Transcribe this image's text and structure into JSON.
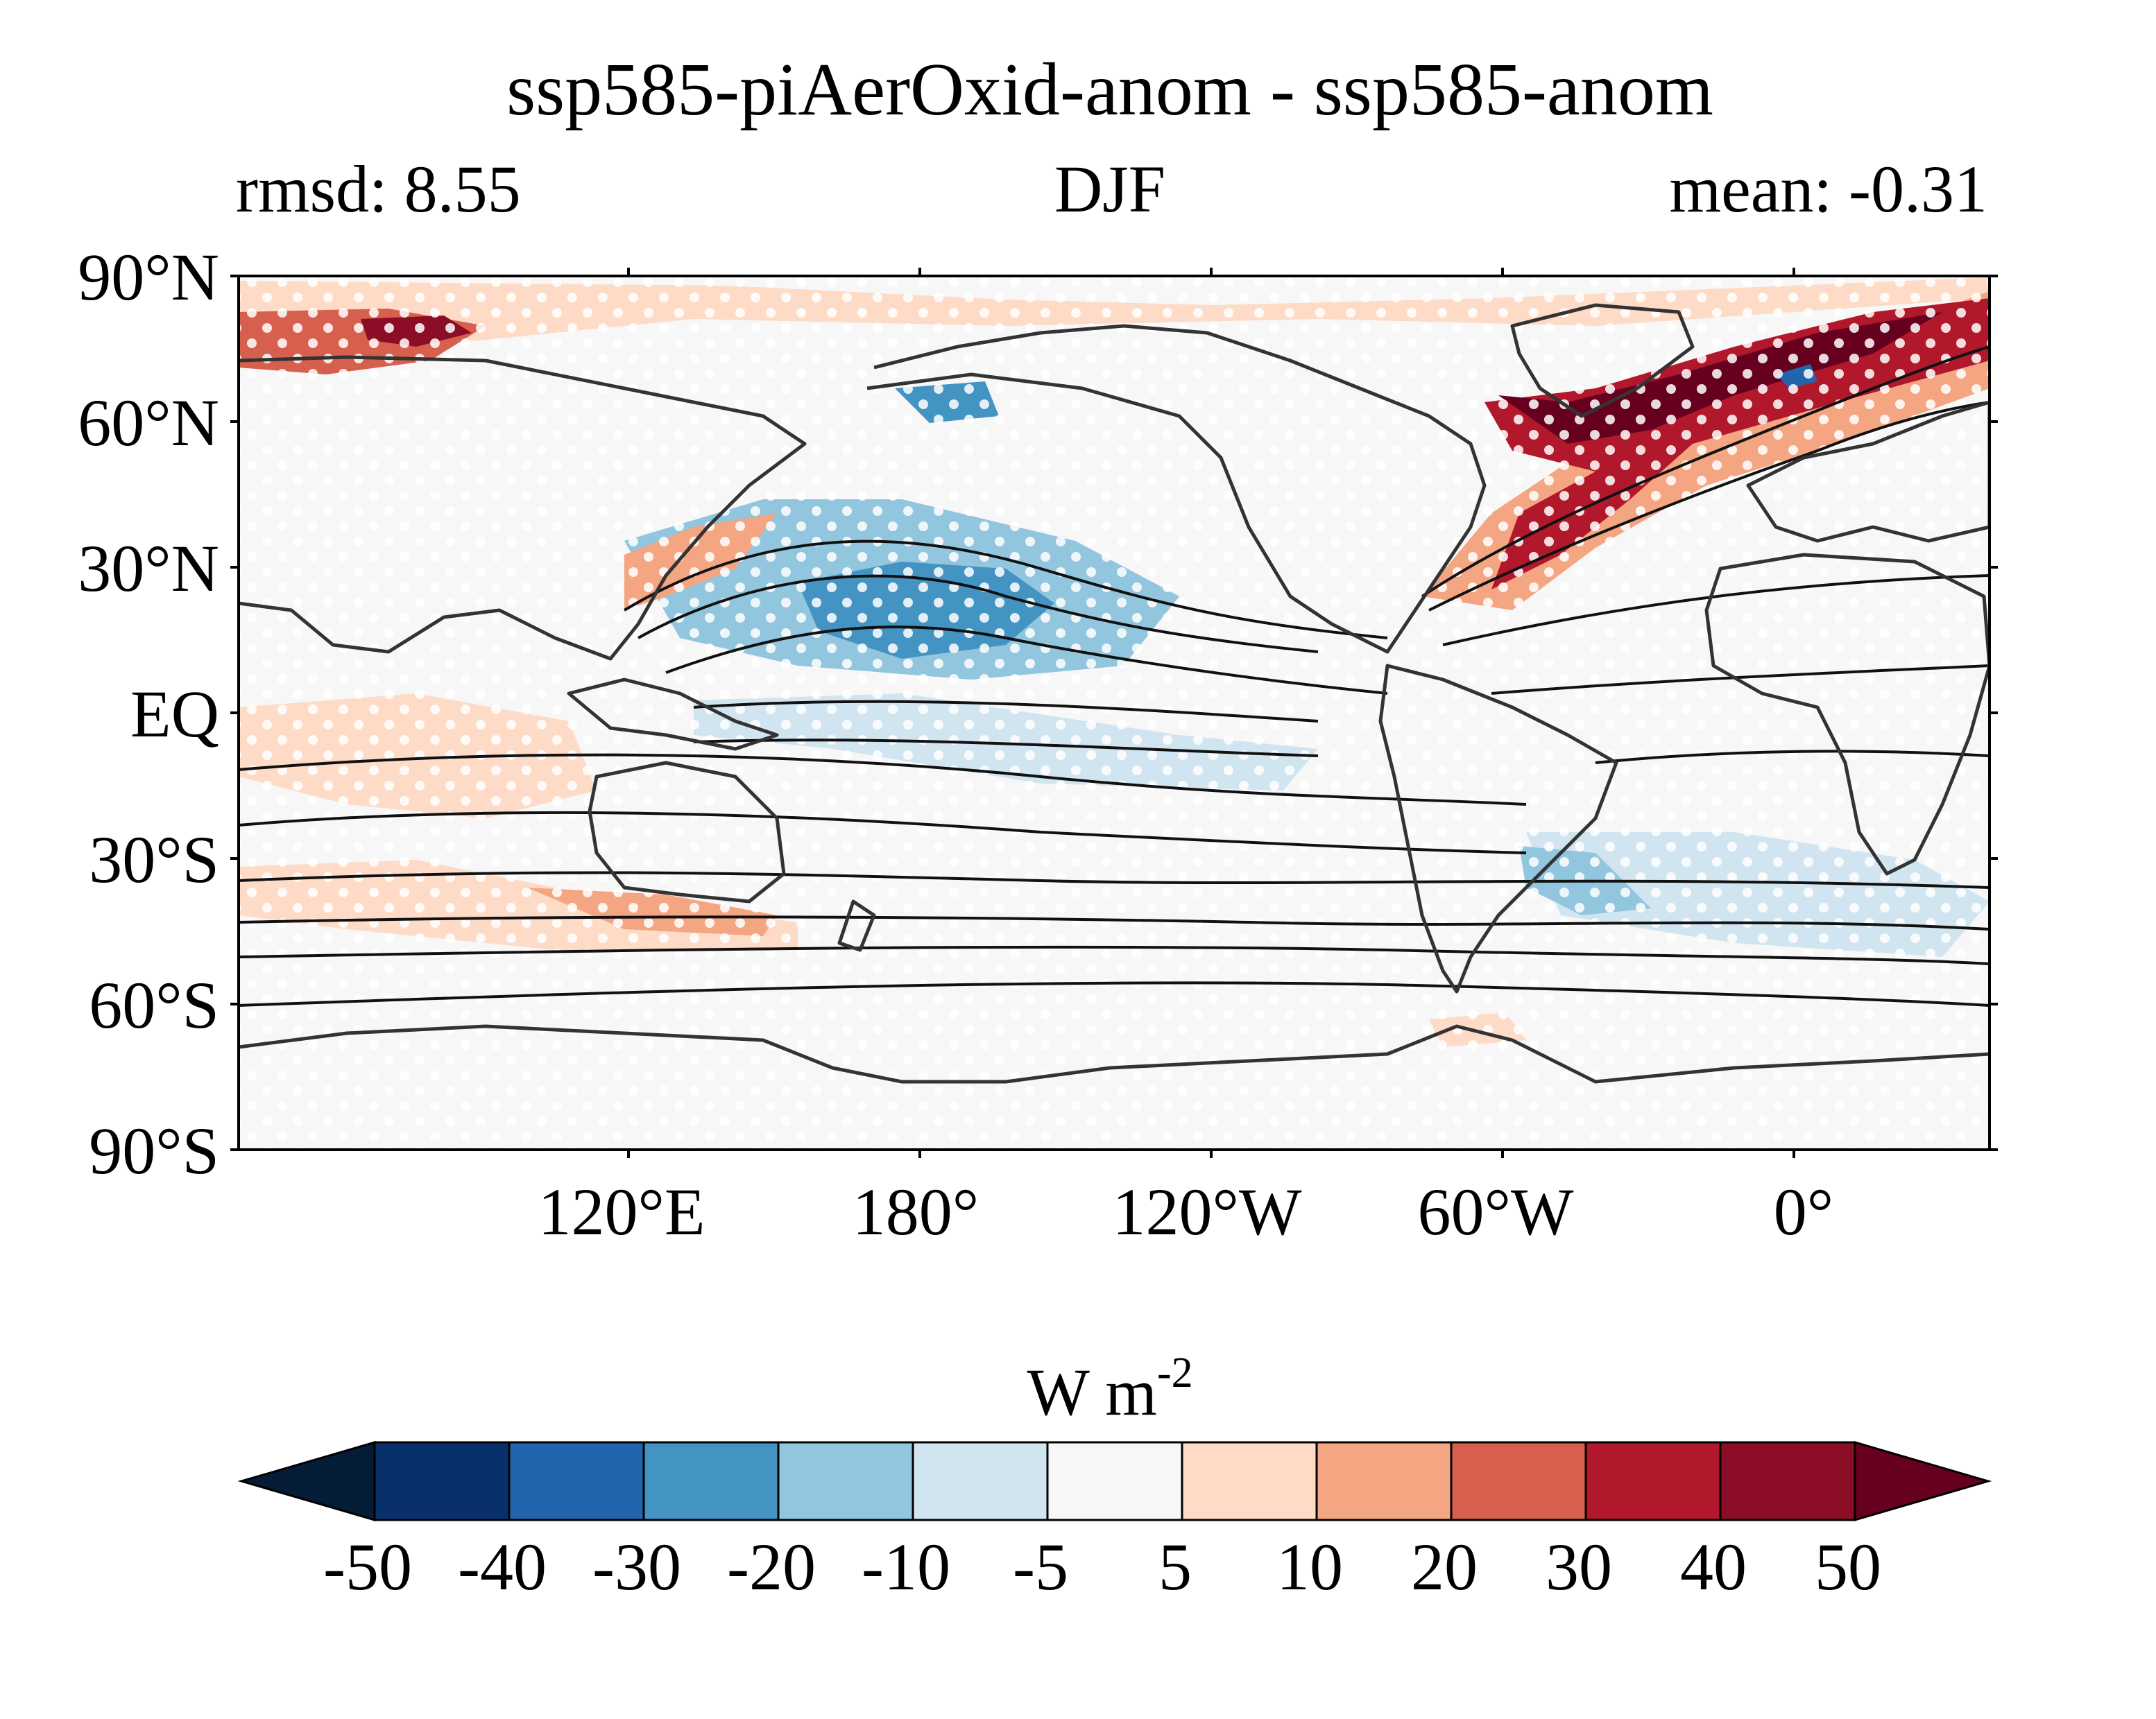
{
  "title": "ssp585-piAerOxid-anom - ssp585-anom",
  "left_label": "rmsd: 8.55",
  "center_label": "DJF",
  "right_label": "mean: -0.31",
  "map": {
    "projection": "cylindrical equidistant",
    "lat_tick_labels": [
      "90°N",
      "60°N",
      "30°N",
      "EQ",
      "30°S",
      "60°S",
      "90°S"
    ],
    "lon_tick_labels": [
      "120°E",
      "180°",
      "120°W",
      "60°W",
      "0°"
    ],
    "field_description_colors": {
      "land": "#f7f7f7",
      "coast": "#333333"
    }
  },
  "colorbar": {
    "label": "W m",
    "label_superscript": "-2",
    "tick_labels": [
      "-50",
      "-40",
      "-30",
      "-20",
      "-10",
      "-5",
      "5",
      "10",
      "20",
      "30",
      "40",
      "50"
    ],
    "levels": [
      -50,
      -40,
      -30,
      -20,
      -10,
      -5,
      5,
      10,
      20,
      30,
      40,
      50
    ],
    "colors": [
      "#08306b",
      "#2166ac",
      "#4393c3",
      "#92c5de",
      "#d1e5f0",
      "#f7f7f7",
      "#fddbc7",
      "#f4a582",
      "#d6604d",
      "#b2182b",
      "#8b0e26"
    ],
    "under_color": "#051c36",
    "over_color": "#67001f"
  }
}
